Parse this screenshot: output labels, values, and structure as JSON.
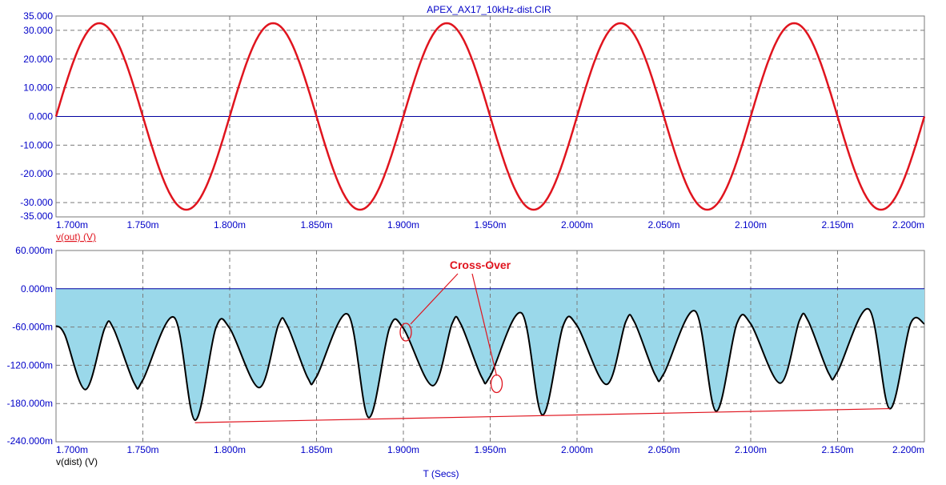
{
  "window_title": "APEX_AX17_10kHz-dist.CIR",
  "x_axis_label": "T (Secs)",
  "colors": {
    "tick_text": "#0000c8",
    "grid": "#7a7a7a",
    "zero_line": "#0000a0",
    "vout_trace": "#e0141e",
    "vdist_trace": "#000000",
    "vdist_fill": "#9ad8ea",
    "annotation": "#e0141e",
    "envelope_line": "#e0141e"
  },
  "chart_data": [
    {
      "type": "line",
      "trace_label": "v(out) (V)",
      "x_ticks": [
        "1.700m",
        "1.750m",
        "1.800m",
        "1.850m",
        "1.900m",
        "1.950m",
        "2.000m",
        "2.050m",
        "2.100m",
        "2.150m",
        "2.200m"
      ],
      "y_ticks": [
        "35.000",
        "30.000",
        "20.000",
        "10.000",
        "0.000",
        "-10.000",
        "-20.000",
        "-30.000",
        "-35.000"
      ],
      "xlim_ms": [
        1.7,
        2.2
      ],
      "ylim": [
        -35,
        35
      ],
      "grid": true,
      "series": [
        {
          "frequency_khz": 10,
          "amplitude": 32.5,
          "x_ms": [
            1.7,
            1.725,
            1.75,
            1.775,
            1.8,
            1.825,
            1.85,
            1.875,
            1.9,
            1.925,
            1.95,
            1.975,
            2.0,
            2.025,
            2.05,
            2.075,
            2.1,
            2.125,
            2.15,
            2.175,
            2.2
          ],
          "y": [
            0,
            32.5,
            0,
            -32.5,
            0,
            32.5,
            0,
            -32.5,
            0,
            32.5,
            0,
            -32.5,
            0,
            32.5,
            0,
            -32.5,
            0,
            32.5,
            0,
            -32.5,
            0
          ]
        }
      ]
    },
    {
      "type": "area",
      "trace_label": "v(dist) (V)",
      "x_ticks": [
        "1.700m",
        "1.750m",
        "1.800m",
        "1.850m",
        "1.900m",
        "1.950m",
        "2.000m",
        "2.050m",
        "2.100m",
        "2.150m",
        "2.200m"
      ],
      "y_ticks": [
        "60.000m",
        "0.000m",
        "-60.000m",
        "-120.000m",
        "-180.000m",
        "-240.000m"
      ],
      "xlim_ms": [
        1.7,
        2.2
      ],
      "ylim_mv": [
        -240,
        60
      ],
      "grid": true,
      "series": [
        {
          "x_ms": [
            1.7,
            1.705,
            1.717,
            1.728,
            1.733,
            1.745,
            1.75,
            1.768,
            1.78,
            1.792,
            1.8,
            1.817,
            1.828,
            1.833,
            1.845,
            1.85,
            1.868,
            1.88,
            1.892,
            1.9,
            1.917,
            1.928,
            1.933,
            1.945,
            1.95,
            1.968,
            1.98,
            1.992,
            2.0,
            2.017,
            2.028,
            2.033,
            2.045,
            2.05,
            2.068,
            2.08,
            2.092,
            2.1,
            2.117,
            2.128,
            2.133,
            2.145,
            2.15,
            2.168,
            2.18,
            2.192,
            2.2
          ],
          "y_mv": [
            -58,
            -72,
            -158,
            -62,
            -62,
            -148,
            -143,
            -45,
            -206,
            -62,
            -62,
            -155,
            -57,
            -57,
            -140,
            -138,
            -40,
            -202,
            -62,
            -62,
            -152,
            -55,
            -55,
            -138,
            -137,
            -38,
            -198,
            -58,
            -58,
            -150,
            -52,
            -52,
            -135,
            -133,
            -35,
            -192,
            -55,
            -55,
            -148,
            -50,
            -50,
            -133,
            -130,
            -32,
            -188,
            -55,
            -55
          ]
        }
      ],
      "envelope_line": {
        "x_ms": [
          1.78,
          2.18
        ],
        "y_mv": [
          -210,
          -188
        ]
      },
      "annotation": {
        "text": "Cross-Over",
        "targets_ms": [
          1.9,
          1.95
        ]
      }
    }
  ]
}
